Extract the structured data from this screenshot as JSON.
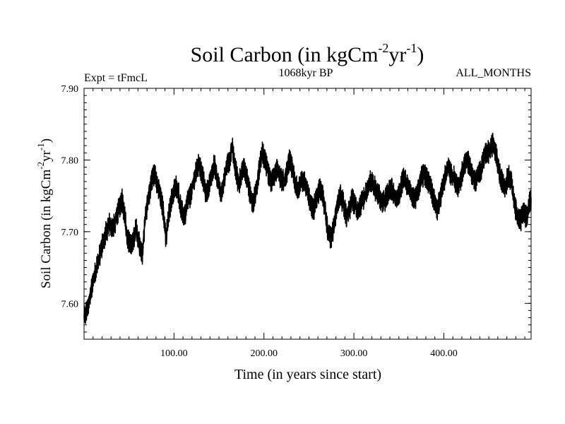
{
  "chart_data": {
    "type": "line",
    "title": {
      "main": "Soil Carbon (in kgCm",
      "sup1": "-2",
      "mid": "yr",
      "sup2": "-1",
      "end": ")"
    },
    "header_left": "Expt = tFmcL",
    "header_center": "1068kyr BP",
    "header_right": "ALL_MONTHS",
    "xlabel": "Time (in years since start)",
    "ylabel": {
      "main": "Soil Carbon (in kgCm",
      "sup1": "-2",
      "mid": "yr",
      "sup2": "-1",
      "end": ")"
    },
    "xlim": [
      0,
      497
    ],
    "ylim": [
      7.55,
      7.9
    ],
    "x_ticks": [
      100,
      200,
      300,
      400
    ],
    "x_tick_labels": [
      "100.00",
      "200.00",
      "300.00",
      "400.00"
    ],
    "y_ticks": [
      7.6,
      7.7,
      7.8,
      7.9
    ],
    "y_tick_labels": [
      "7.60",
      "7.70",
      "7.80",
      "7.90"
    ],
    "series": [
      {
        "name": "Soil Carbon",
        "color": "#000000",
        "monthly_noise_amplitude": 0.012,
        "x": [
          0,
          3,
          6,
          9,
          12,
          15,
          18,
          22,
          25,
          28,
          32,
          35,
          38,
          42,
          45,
          48,
          52,
          55,
          58,
          62,
          65,
          68,
          72,
          75,
          78,
          82,
          85,
          88,
          91,
          95,
          98,
          102,
          105,
          108,
          112,
          115,
          118,
          122,
          125,
          128,
          132,
          135,
          138,
          142,
          145,
          148,
          152,
          155,
          158,
          162,
          165,
          168,
          172,
          175,
          178,
          182,
          185,
          188,
          192,
          195,
          198,
          202,
          205,
          208,
          212,
          215,
          218,
          222,
          225,
          228,
          232,
          235,
          238,
          242,
          245,
          248,
          252,
          255,
          258,
          262,
          265,
          268,
          271,
          275,
          278,
          282,
          285,
          288,
          292,
          295,
          298,
          302,
          305,
          308,
          312,
          315,
          318,
          322,
          325,
          328,
          332,
          335,
          338,
          342,
          345,
          348,
          352,
          355,
          358,
          362,
          365,
          368,
          372,
          375,
          378,
          382,
          385,
          388,
          392,
          395,
          398,
          402,
          405,
          408,
          412,
          415,
          418,
          422,
          425,
          428,
          432,
          435,
          438,
          442,
          445,
          448,
          452,
          455,
          458,
          462,
          465,
          468,
          472,
          475,
          478,
          482,
          485,
          488,
          492,
          495,
          497
        ],
        "values": [
          7.58,
          7.59,
          7.605,
          7.625,
          7.64,
          7.655,
          7.67,
          7.69,
          7.7,
          7.71,
          7.705,
          7.715,
          7.73,
          7.745,
          7.725,
          7.69,
          7.68,
          7.69,
          7.705,
          7.68,
          7.67,
          7.72,
          7.75,
          7.77,
          7.78,
          7.765,
          7.75,
          7.73,
          7.69,
          7.73,
          7.75,
          7.765,
          7.755,
          7.73,
          7.72,
          7.745,
          7.75,
          7.77,
          7.785,
          7.795,
          7.775,
          7.755,
          7.76,
          7.78,
          7.795,
          7.775,
          7.75,
          7.765,
          7.79,
          7.8,
          7.82,
          7.79,
          7.765,
          7.78,
          7.79,
          7.77,
          7.75,
          7.74,
          7.76,
          7.79,
          7.81,
          7.795,
          7.78,
          7.77,
          7.78,
          7.79,
          7.775,
          7.77,
          7.78,
          7.8,
          7.785,
          7.765,
          7.76,
          7.77,
          7.77,
          7.755,
          7.74,
          7.73,
          7.745,
          7.76,
          7.755,
          7.73,
          7.7,
          7.69,
          7.71,
          7.74,
          7.75,
          7.74,
          7.72,
          7.73,
          7.745,
          7.735,
          7.725,
          7.74,
          7.75,
          7.76,
          7.77,
          7.765,
          7.755,
          7.75,
          7.74,
          7.745,
          7.755,
          7.76,
          7.75,
          7.745,
          7.76,
          7.775,
          7.77,
          7.76,
          7.75,
          7.745,
          7.76,
          7.775,
          7.78,
          7.77,
          7.765,
          7.75,
          7.73,
          7.74,
          7.76,
          7.78,
          7.79,
          7.78,
          7.775,
          7.76,
          7.77,
          7.79,
          7.8,
          7.795,
          7.775,
          7.77,
          7.78,
          7.79,
          7.805,
          7.81,
          7.815,
          7.825,
          7.81,
          7.78,
          7.77,
          7.76,
          7.78,
          7.77,
          7.74,
          7.72,
          7.715,
          7.725,
          7.72,
          7.74,
          7.745
        ]
      }
    ]
  }
}
